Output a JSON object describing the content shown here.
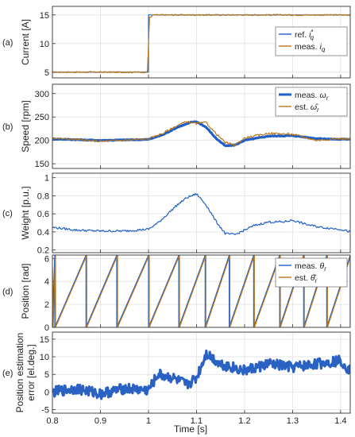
{
  "colors": {
    "blue": "#1f5fc8",
    "orange": "#b8761d",
    "heavyBlue": "#2a62c4"
  },
  "xlabel": "Time [s]",
  "chart_data": [
    {
      "id": "a",
      "letter": "(a)",
      "type": "line",
      "ylabel": "Current [A]",
      "xlim": [
        0.8,
        1.42
      ],
      "ylim": [
        4,
        16.5
      ],
      "xticks": [
        0.8,
        0.9,
        1.0,
        1.1,
        1.2,
        1.3,
        1.4
      ],
      "yticks": [
        5,
        10,
        15
      ],
      "legend_position": "right",
      "series": [
        {
          "name": "ref.",
          "math": "i",
          "sub": "q",
          "sup": "*",
          "color": "#1f5fc8",
          "x": [
            0.8,
            1.0,
            1.0,
            1.42
          ],
          "y": [
            5,
            5,
            15,
            15
          ]
        },
        {
          "name": "meas.",
          "math": "i",
          "sub": "q",
          "color": "#b8761d",
          "x": [
            0.8,
            1.0,
            1.0,
            1.01,
            1.42
          ],
          "y": [
            5,
            5,
            14.4,
            15,
            15
          ],
          "noise": 0.12
        }
      ]
    },
    {
      "id": "b",
      "letter": "(b)",
      "type": "line",
      "ylabel": "Speed [rpm]",
      "xlim": [
        0.8,
        1.42
      ],
      "ylim": [
        140,
        320
      ],
      "xticks": [
        0.8,
        0.9,
        1.0,
        1.1,
        1.2,
        1.3,
        1.4
      ],
      "yticks": [
        150,
        200,
        250,
        300
      ],
      "legend_position": "top-right",
      "series": [
        {
          "name": "meas.",
          "math": "ω",
          "sub": "r",
          "color": "#1f5fc8",
          "heavy": true,
          "x": [
            0.8,
            0.9,
            1.0,
            1.03,
            1.06,
            1.09,
            1.1,
            1.12,
            1.14,
            1.16,
            1.18,
            1.2,
            1.25,
            1.3,
            1.35,
            1.4,
            1.42
          ],
          "y": [
            203,
            200,
            202,
            212,
            228,
            239,
            240,
            228,
            205,
            188,
            190,
            200,
            209,
            210,
            204,
            202,
            203
          ]
        },
        {
          "name": "est.",
          "math": "ω̂",
          "sub": "r",
          "color": "#b8761d",
          "x": [
            0.8,
            0.9,
            1.0,
            1.03,
            1.06,
            1.08,
            1.1,
            1.12,
            1.14,
            1.16,
            1.18,
            1.2,
            1.25,
            1.3,
            1.35,
            1.4,
            1.42
          ],
          "y": [
            205,
            198,
            203,
            215,
            232,
            240,
            236,
            238,
            215,
            195,
            190,
            205,
            215,
            213,
            200,
            204,
            203
          ]
        }
      ]
    },
    {
      "id": "c",
      "letter": "(c)",
      "type": "line",
      "ylabel": "Weight [p.u.]",
      "xlim": [
        0.8,
        1.42
      ],
      "ylim": [
        0.17,
        1.05
      ],
      "xticks": [
        0.8,
        0.9,
        1.0,
        1.1,
        1.2,
        1.3,
        1.4
      ],
      "yticks": [
        0.2,
        0.4,
        0.6,
        0.8,
        1.0
      ],
      "series": [
        {
          "name": "",
          "color": "#1f5fc8",
          "x": [
            0.8,
            0.85,
            0.9,
            0.95,
            1.0,
            1.02,
            1.04,
            1.06,
            1.08,
            1.1,
            1.12,
            1.14,
            1.16,
            1.18,
            1.2,
            1.22,
            1.25,
            1.28,
            1.3,
            1.33,
            1.36,
            1.4,
            1.42
          ],
          "y": [
            0.45,
            0.42,
            0.41,
            0.41,
            0.43,
            0.5,
            0.6,
            0.7,
            0.78,
            0.82,
            0.7,
            0.52,
            0.38,
            0.37,
            0.42,
            0.47,
            0.51,
            0.51,
            0.53,
            0.48,
            0.45,
            0.43,
            0.4
          ]
        }
      ]
    },
    {
      "id": "d",
      "letter": "(d)",
      "type": "line",
      "ylabel": "Position [rad]",
      "xlim": [
        0.8,
        1.42
      ],
      "ylim": [
        0,
        6.3
      ],
      "xticks": [
        0.8,
        0.9,
        1.0,
        1.1,
        1.2,
        1.3,
        1.4
      ],
      "yticks": [
        0,
        2,
        4,
        6
      ],
      "legend_position": "top-right",
      "sawtooth_wraps": [
        0.8,
        0.805,
        0.87,
        0.934,
        1.0,
        1.063,
        1.118,
        1.168,
        1.219,
        1.273,
        1.323,
        1.371,
        1.42
      ],
      "series": [
        {
          "name": "meas.",
          "math": "θ",
          "sub": "r",
          "color": "#1f5fc8",
          "offset": 0.0
        },
        {
          "name": "est.",
          "math": "θ̂",
          "sub": "r",
          "color": "#b8761d",
          "offset": 0.0015
        }
      ]
    },
    {
      "id": "e",
      "letter": "(e)",
      "type": "line",
      "ylabel": "Position estimation error [el.deg.]",
      "xlim": [
        0.8,
        1.42
      ],
      "ylim": [
        -6,
        17
      ],
      "xticks": [
        0.8,
        0.9,
        1.0,
        1.1,
        1.2,
        1.3,
        1.4
      ],
      "xticklabels": [
        "0.8",
        "0.9",
        "1",
        "1.1",
        "1.2",
        "1.3",
        "1.4"
      ],
      "yticks": [
        -5,
        0,
        5,
        10,
        15
      ],
      "series": [
        {
          "name": "",
          "color": "#2a62c4",
          "heavy": true,
          "x": [
            0.8,
            0.85,
            0.9,
            0.95,
            1.0,
            1.02,
            1.05,
            1.08,
            1.1,
            1.12,
            1.15,
            1.2,
            1.25,
            1.3,
            1.35,
            1.4,
            1.42
          ],
          "y": [
            0,
            1,
            -0.5,
            1,
            0.5,
            5,
            4,
            2,
            4,
            11,
            8,
            6,
            8,
            7,
            8,
            9,
            6
          ],
          "noise": 1.5
        }
      ]
    }
  ]
}
